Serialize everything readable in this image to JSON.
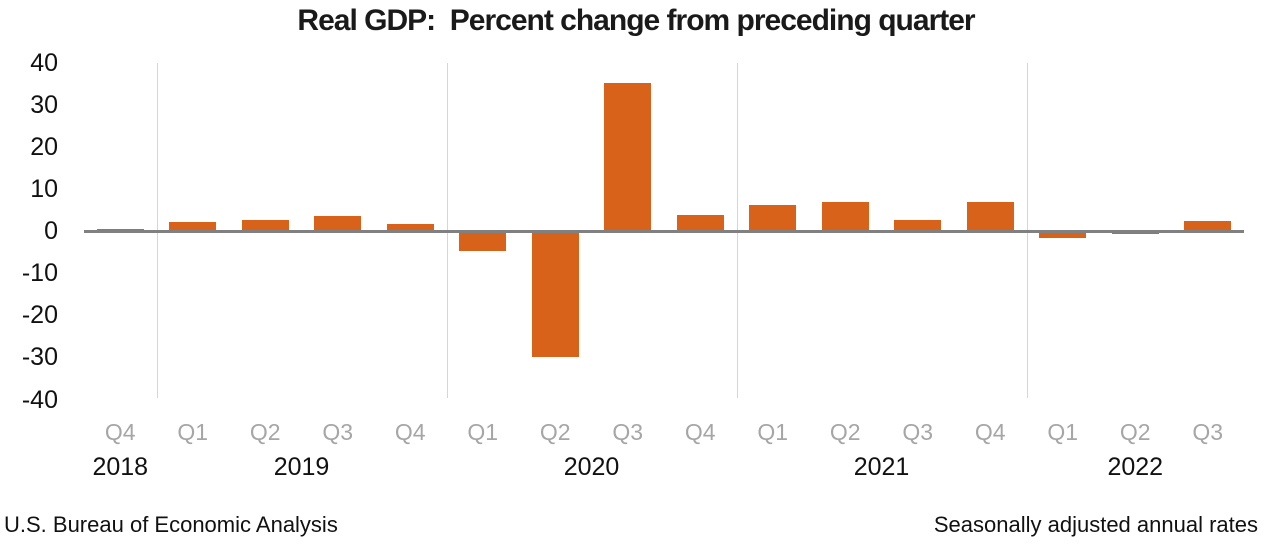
{
  "chart_data": {
    "type": "bar",
    "title": "Real GDP:  Percent change from preceding quarter",
    "source_label": "U.S. Bureau of Economic Analysis",
    "note_label": "Seasonally adjusted annual rates",
    "categories": [
      "Q4",
      "Q1",
      "Q2",
      "Q3",
      "Q4",
      "Q1",
      "Q2",
      "Q3",
      "Q4",
      "Q1",
      "Q2",
      "Q3",
      "Q4",
      "Q1",
      "Q2",
      "Q3"
    ],
    "values": [
      0.7,
      2.2,
      2.7,
      3.6,
      1.8,
      -4.6,
      -29.9,
      35.3,
      3.9,
      6.3,
      7.0,
      2.7,
      7.0,
      -1.6,
      -0.6,
      2.6
    ],
    "years": [
      {
        "label": "2018",
        "quarters": 1
      },
      {
        "label": "2019",
        "quarters": 4
      },
      {
        "label": "2020",
        "quarters": 4
      },
      {
        "label": "2021",
        "quarters": 4
      },
      {
        "label": "2022",
        "quarters": 3
      }
    ],
    "xlabel": "",
    "ylabel": "",
    "ylim": [
      -40,
      40
    ],
    "yticks": [
      40,
      30,
      20,
      10,
      0,
      -10,
      -20,
      -30,
      -40
    ],
    "grid_after_slots": [
      1,
      5,
      9,
      13
    ],
    "legend_position": "none",
    "bar_color": "#D9621B",
    "zero_line_color": "#808080",
    "gridline_color": "#D6D6D6",
    "quarter_label_color": "#A6A6A6",
    "year_label_color": "#111111"
  }
}
